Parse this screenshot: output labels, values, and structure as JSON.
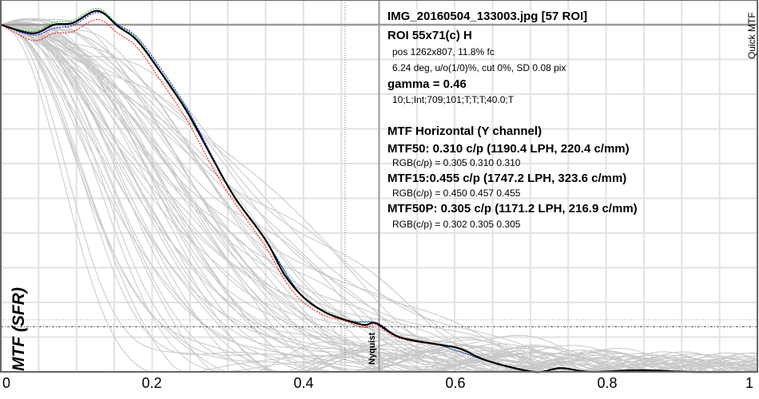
{
  "chart_data": {
    "type": "line",
    "title": "IMG_20160504_133003.jpg [57 ROI]",
    "ylabel": "MTF (SFR)",
    "xlabel": "",
    "xlim": [
      0,
      1
    ],
    "ylim": [
      0,
      1.07
    ],
    "x_ticks": [
      "0",
      "0.2",
      "0.4",
      "0.6",
      "0.8",
      "1"
    ],
    "x_tick_values": [
      0,
      0.2,
      0.4,
      0.6,
      0.8,
      1
    ],
    "grid": true,
    "corner_label": "Quick MTF",
    "nyquist_label": "Nyquist",
    "nyquist_x": 0.5,
    "mtf15_marker_x": 0.455,
    "ref_lines_y": [
      1.0,
      0.15,
      0.13
    ],
    "series": [
      {
        "name": "Y",
        "color": "#000000",
        "style": "solid",
        "x": [
          0,
          0.042,
          0.07,
          0.095,
          0.128,
          0.155,
          0.18,
          0.211,
          0.246,
          0.281,
          0.31,
          0.35,
          0.375,
          0.4,
          0.43,
          0.455,
          0.48,
          0.496,
          0.527,
          0.575,
          0.607,
          0.643,
          0.705,
          0.74,
          0.78,
          0.845,
          0.91,
          1
        ],
        "y": [
          1.0,
          0.975,
          1.0,
          1.005,
          1.04,
          0.995,
          0.955,
          0.864,
          0.75,
          0.61,
          0.5,
          0.38,
          0.28,
          0.215,
          0.17,
          0.15,
          0.135,
          0.14,
          0.1,
          0.08,
          0.067,
          0.032,
          0.0,
          0.011,
          0.0,
          0.005,
          0.0,
          0.0
        ]
      },
      {
        "name": "R",
        "color": "#ff0000",
        "style": "dashed",
        "x": [
          0,
          0.042,
          0.07,
          0.095,
          0.128,
          0.155,
          0.18,
          0.211,
          0.246,
          0.281,
          0.305,
          0.35,
          0.375,
          0.4,
          0.43,
          0.45,
          0.48,
          0.496,
          0.527,
          0.575,
          0.607,
          0.643,
          0.705
        ],
        "y": [
          1.0,
          0.955,
          0.975,
          0.98,
          1.015,
          0.975,
          0.935,
          0.84,
          0.725,
          0.585,
          0.5,
          0.36,
          0.265,
          0.2,
          0.16,
          0.15,
          0.128,
          0.135,
          0.097,
          0.078,
          0.065,
          0.031,
          0.0
        ]
      },
      {
        "name": "G",
        "color": "#00b000",
        "style": "dashed",
        "x": [
          0,
          0.042,
          0.07,
          0.095,
          0.128,
          0.155,
          0.18,
          0.211,
          0.246,
          0.281,
          0.31,
          0.35,
          0.4,
          0.457,
          0.496,
          0.527,
          0.575,
          0.643,
          0.705
        ],
        "y": [
          1.0,
          0.98,
          1.007,
          1.012,
          1.047,
          1.0,
          0.96,
          0.868,
          0.755,
          0.612,
          0.5,
          0.38,
          0.215,
          0.15,
          0.14,
          0.1,
          0.08,
          0.032,
          0.0
        ]
      },
      {
        "name": "B",
        "color": "#0000ff",
        "style": "dashed",
        "x": [
          0,
          0.042,
          0.07,
          0.095,
          0.128,
          0.155,
          0.18,
          0.211,
          0.246,
          0.281,
          0.31,
          0.35,
          0.4,
          0.455,
          0.496,
          0.527,
          0.575,
          0.643,
          0.705
        ],
        "y": [
          1.0,
          0.97,
          0.99,
          0.998,
          1.035,
          1.0,
          0.965,
          0.875,
          0.76,
          0.615,
          0.5,
          0.38,
          0.215,
          0.15,
          0.142,
          0.1,
          0.08,
          0.032,
          0.0
        ]
      }
    ],
    "other_roi_mtf50": [
      0.09,
      0.1,
      0.11,
      0.12,
      0.12,
      0.13,
      0.13,
      0.14,
      0.14,
      0.15,
      0.15,
      0.16,
      0.16,
      0.17,
      0.17,
      0.18,
      0.18,
      0.18,
      0.19,
      0.19,
      0.2,
      0.2,
      0.2,
      0.21,
      0.21,
      0.21,
      0.22,
      0.22,
      0.22,
      0.23,
      0.23,
      0.23,
      0.24,
      0.24,
      0.24,
      0.25,
      0.25,
      0.25,
      0.26,
      0.26,
      0.26,
      0.27,
      0.27,
      0.28,
      0.28,
      0.29,
      0.29,
      0.3,
      0.3,
      0.31,
      0.31,
      0.32,
      0.33,
      0.34,
      0.35,
      0.36
    ]
  },
  "info": {
    "title": "IMG_20160504_133003.jpg [57 ROI]",
    "roi": "ROI 55x71(c) H",
    "pos": "pos 1262x807, 11.8% fc",
    "angle": "6.24 deg, u/o(1/0)%, cut 0%, SD 0.08 pix",
    "gamma": "gamma = 0.46",
    "settings": "10;L;Int;709;101;T;T;T;40.0;T",
    "heading": "MTF Horizontal (Y channel)",
    "mtf50": "MTF50: 0.310 c/p (1190.4 LPH, 220.4 c/mm)",
    "mtf50_rgb": "RGB(c/p) = 0.305 0.310 0.310",
    "mtf15": "MTF15:0.455 c/p (1747.2 LPH, 323.6 c/mm)",
    "mtf15_rgb": "RGB(c/p) = 0.450 0.457 0.455",
    "mtf50p": "MTF50P: 0.305 c/p (1171.2 LPH, 216.9 c/mm)",
    "mtf50p_rgb": "RGB(c/p) = 0.302 0.305 0.305"
  }
}
